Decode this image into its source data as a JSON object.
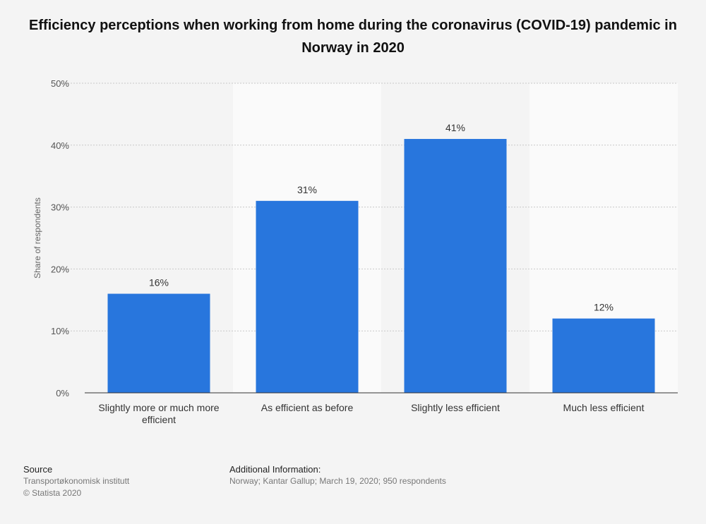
{
  "title": "Efficiency perceptions when working from home during the coronavirus (COVID-19) pandemic in Norway in 2020",
  "footer": {
    "source_heading": "Source",
    "source_lines": [
      "Transportøkonomisk institutt",
      "© Statista 2020"
    ],
    "info_heading": "Additional Information:",
    "info_text": "Norway; Kantar Gallup; March 19, 2020; 950 respondents"
  },
  "chart_data": {
    "type": "bar",
    "categories": [
      [
        "Slightly more or much more",
        "efficient"
      ],
      [
        "As efficient as before"
      ],
      [
        "Slightly less efficient"
      ],
      [
        "Much less efficient"
      ]
    ],
    "values": [
      16,
      31,
      41,
      12
    ],
    "data_labels": [
      "16%",
      "31%",
      "41%",
      "12%"
    ],
    "ylabel": "Share of respondents",
    "ylim": [
      0,
      50
    ],
    "yticks": [
      0,
      10,
      20,
      30,
      40,
      50
    ],
    "ytick_labels": [
      "0%",
      "10%",
      "20%",
      "30%",
      "40%",
      "50%"
    ],
    "bar_color": "#2876dd",
    "grid": true
  }
}
